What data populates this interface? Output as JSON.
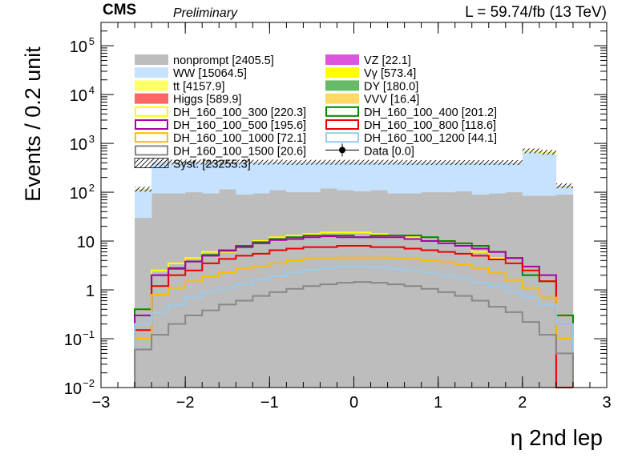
{
  "header": {
    "experiment": "CMS",
    "status": "Preliminary",
    "lumi": "L = 59.74/fb (13 TeV)"
  },
  "chart_data": {
    "type": "histogram",
    "xlabel": "η 2nd lep",
    "ylabel": "Events / 0.2 unit",
    "xlim": [
      -3,
      3
    ],
    "ylim": [
      0.01,
      300000
    ],
    "yscale": "log",
    "x_ticks": [
      "−3",
      "−2",
      "−1",
      "0",
      "1",
      "2",
      "3"
    ],
    "y_ticks": [
      {
        "value": 0.01,
        "base": "10",
        "exp": "−2"
      },
      {
        "value": 0.1,
        "base": "10",
        "exp": "−1"
      },
      {
        "value": 1,
        "base": "1",
        "exp": ""
      },
      {
        "value": 10,
        "base": "10",
        "exp": ""
      },
      {
        "value": 100,
        "base": "10",
        "exp": "2"
      },
      {
        "value": 1000,
        "base": "10",
        "exp": "3"
      },
      {
        "value": 10000,
        "base": "10",
        "exp": "4"
      },
      {
        "value": 100000,
        "base": "10",
        "exp": "5"
      }
    ],
    "bin_edges": [
      -2.6,
      -2.4,
      -2.2,
      -2.0,
      -1.8,
      -1.6,
      -1.4,
      -1.2,
      -1.0,
      -0.8,
      -0.6,
      -0.4,
      -0.2,
      0.0,
      0.2,
      0.4,
      0.6,
      0.8,
      1.0,
      1.2,
      1.4,
      1.6,
      1.8,
      2.0,
      2.2,
      2.4,
      2.6
    ],
    "stack": [
      {
        "name": "nonprompt [2405.5]",
        "color": "#bdbdbd",
        "values": [
          30,
          95,
          95,
          100,
          95,
          115,
          90,
          95,
          110,
          100,
          100,
          120,
          110,
          105,
          110,
          95,
          95,
          100,
          100,
          105,
          90,
          95,
          100,
          85,
          85,
          90
        ]
      },
      {
        "name": "WW [15064.5]",
        "color": "#c6e2ff",
        "values": [
          80,
          310,
          315,
          310,
          310,
          290,
          320,
          310,
          300,
          300,
          305,
          285,
          295,
          300,
          295,
          310,
          305,
          300,
          300,
          295,
          310,
          305,
          300,
          570,
          530,
          40
        ]
      },
      {
        "name": "tt [4157.9]",
        "color": "#ffff66",
        "values": [
          2,
          2,
          2,
          2,
          2,
          2,
          2,
          2,
          2,
          2,
          2,
          2,
          2,
          2,
          2,
          2,
          2,
          2,
          2,
          2,
          2,
          2,
          2,
          30,
          25,
          1
        ]
      },
      {
        "name": "Higgs [589.9]",
        "color": "#ff6666",
        "values": [
          1,
          1,
          1,
          1,
          1,
          1,
          1,
          1,
          1,
          1,
          1,
          1,
          1,
          1,
          1,
          1,
          1,
          1,
          1,
          1,
          1,
          1,
          1,
          2,
          2,
          1
        ]
      },
      {
        "name": "VZ [22.1]",
        "color": "#dd55dd",
        "values": [
          0.3,
          0.3,
          0.3,
          0.3,
          0.3,
          0.3,
          0.3,
          0.3,
          0.3,
          0.3,
          0.3,
          0.3,
          0.3,
          0.3,
          0.3,
          0.3,
          0.3,
          0.3,
          0.3,
          0.3,
          0.3,
          0.3,
          0.3,
          0.3,
          0.3,
          0.3
        ]
      },
      {
        "name": "Vγ [573.4]",
        "color": "#ffff00",
        "values": [
          1,
          1,
          1,
          1,
          1,
          1,
          1,
          1,
          1,
          1,
          1,
          1,
          1,
          1,
          1,
          1,
          1,
          1,
          1,
          1,
          1,
          1,
          1,
          15,
          15,
          2
        ]
      },
      {
        "name": "DY [180.0]",
        "color": "#66bb66",
        "values": [
          0.5,
          0.5,
          0.5,
          0.5,
          0.5,
          0.5,
          0.5,
          0.5,
          0.5,
          0.5,
          0.5,
          0.5,
          0.5,
          0.5,
          0.5,
          0.5,
          0.5,
          0.5,
          0.5,
          0.5,
          0.5,
          0.5,
          0.5,
          1,
          1,
          0.5
        ]
      },
      {
        "name": "VVV [16.4]",
        "color": "#ffd966",
        "values": [
          0.1,
          0.1,
          0.1,
          0.1,
          0.1,
          0.1,
          0.1,
          0.1,
          0.1,
          0.1,
          0.1,
          0.1,
          0.1,
          0.1,
          0.1,
          0.1,
          0.1,
          0.1,
          0.1,
          0.1,
          0.1,
          0.1,
          0.1,
          0.1,
          0.1,
          0.1
        ]
      }
    ],
    "signals": [
      {
        "name": "DH_160_100_300 [220.3]",
        "color": "#ffff00",
        "values": [
          0.4,
          2.5,
          3.5,
          4.5,
          6,
          6,
          8,
          10,
          12,
          13,
          14,
          15,
          15,
          15,
          14,
          13,
          12,
          10,
          9,
          8,
          6,
          4.5,
          3.5,
          2.5,
          1.5,
          0.3
        ]
      },
      {
        "name": "DH_160_100_400 [201.2]",
        "color": "#008800",
        "values": [
          0.4,
          2,
          2.7,
          3.8,
          5.2,
          6.5,
          8,
          9.5,
          11,
          12,
          13,
          13,
          13,
          12,
          13,
          13,
          13,
          12,
          10,
          9,
          8,
          6,
          4.5,
          2,
          1.5,
          0.3
        ]
      },
      {
        "name": "DH_160_100_500 [195.6]",
        "color": "#aa00aa",
        "values": [
          0.3,
          2,
          2.8,
          3.8,
          5,
          6.3,
          7.5,
          9,
          10.5,
          11,
          12,
          12.5,
          12,
          12,
          12,
          12,
          11,
          10,
          9,
          8,
          7,
          6,
          4.5,
          3,
          2,
          0.2
        ]
      },
      {
        "name": "DH_160_100_800 [118.6]",
        "color": "#ee0000",
        "values": [
          0.15,
          1.2,
          2,
          2.5,
          3.5,
          4.3,
          5,
          5.5,
          6.5,
          7,
          7.5,
          7.5,
          8,
          8,
          7.5,
          7.5,
          7,
          6.5,
          6,
          5.5,
          5,
          4.2,
          3.5,
          2.5,
          1.5,
          0.01
        ]
      },
      {
        "name": "DH_160_100_1000 [72.1]",
        "color": "#ffbb00",
        "values": [
          0.1,
          0.8,
          1.1,
          1.5,
          1.9,
          2.3,
          2.8,
          3.1,
          3.5,
          4,
          4.5,
          4.5,
          4.6,
          4.6,
          4.6,
          4.5,
          4.3,
          4,
          3.8,
          3.3,
          2.8,
          2.2,
          1.6,
          1.1,
          0.7,
          0.1
        ]
      },
      {
        "name": "DH_160_100_1200 [44.1]",
        "color": "#99ccee",
        "values": [
          0.2,
          0.35,
          0.5,
          0.7,
          0.9,
          1.1,
          1.3,
          1.6,
          1.9,
          2.3,
          2.6,
          2.8,
          3,
          3,
          2.9,
          2.7,
          2.5,
          2.3,
          2,
          1.7,
          1.4,
          1.2,
          0.9,
          0.7,
          0.5,
          0.2
        ]
      },
      {
        "name": "DH_160_100_1500 [20.6]",
        "color": "#888888",
        "values": [
          0.06,
          0.12,
          0.2,
          0.3,
          0.38,
          0.5,
          0.6,
          0.75,
          0.9,
          1.05,
          1.2,
          1.3,
          1.4,
          1.45,
          1.4,
          1.3,
          1.2,
          1.05,
          0.9,
          0.75,
          0.6,
          0.45,
          0.35,
          0.22,
          0.12,
          0.05
        ]
      }
    ],
    "data": {
      "name": "Data [0.0]"
    },
    "syst": {
      "name": "Syst. [23255.3]"
    },
    "legend_placement": "top-left"
  }
}
